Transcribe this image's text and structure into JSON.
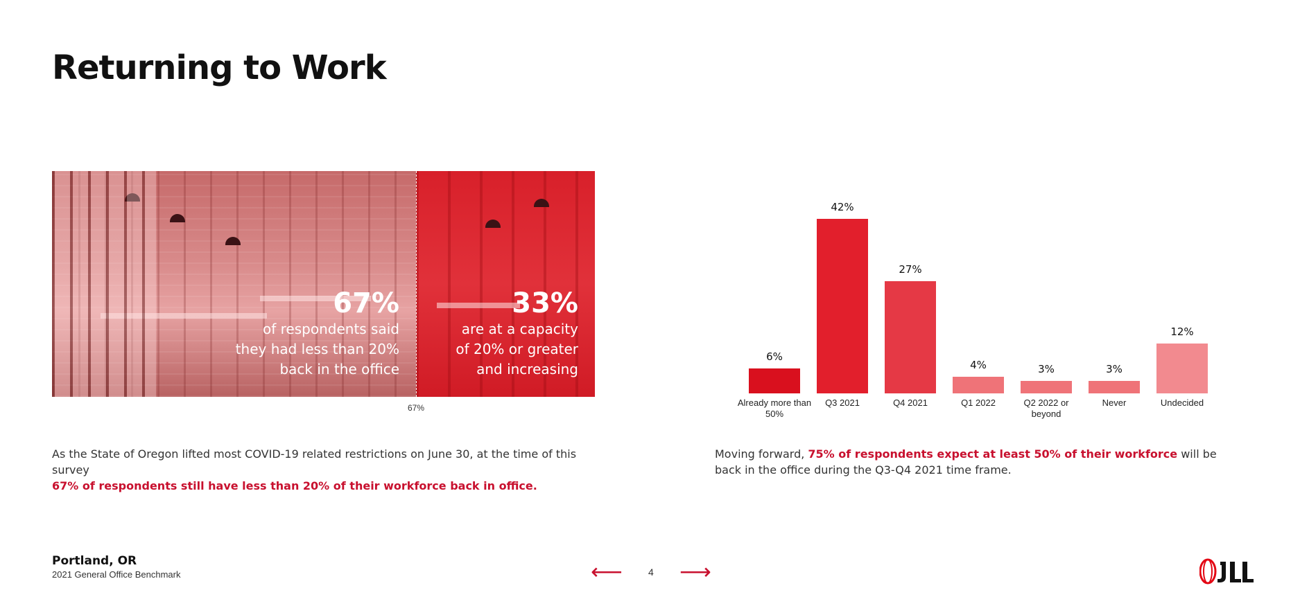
{
  "page": {
    "title": "Returning to Work"
  },
  "photo_panel": {
    "left_stat": {
      "value": "67%",
      "text": "of respondents said\nthey had less than 20%\nback in the office"
    },
    "right_stat": {
      "value": "33%",
      "text": "are at a capacity\nof  20% or greater\nand increasing"
    },
    "divider_label": "67%",
    "split_fraction": 0.67
  },
  "captions": {
    "left_plain": "As the State of Oregon lifted most COVID-19 related restrictions on June 30, at the time of this survey ",
    "left_highlight": "67% of respondents still have less than 20% of their workforce back in office.",
    "right_plain_1": "Moving forward, ",
    "right_highlight": "75% of respondents expect at least 50% of their workforce",
    "right_plain_2": " will be back in the office during the Q3-Q4 2021 time frame."
  },
  "chart_data": {
    "type": "bar",
    "categories": [
      "Already more than 50%",
      "Q3 2021",
      "Q4 2021",
      "Q1 2022",
      "Q2 2022 or beyond",
      "Never",
      "Undecided"
    ],
    "values": [
      6,
      42,
      27,
      4,
      3,
      3,
      12
    ],
    "data_labels": [
      "6%",
      "42%",
      "27%",
      "4%",
      "3%",
      "3%",
      "12%"
    ],
    "colors": [
      "#d9101e",
      "#e21f2c",
      "#e53945",
      "#ef7378",
      "#ef7378",
      "#ef7378",
      "#f28a8f"
    ],
    "title": "",
    "xlabel": "",
    "ylabel": "",
    "ylim": [
      0,
      42
    ]
  },
  "footer": {
    "city": "Portland, OR",
    "subtitle": "2021 General Office Benchmark",
    "page_number": "4",
    "prev_icon": "arrow-left-icon",
    "next_icon": "arrow-right-icon",
    "brand": "JLL",
    "brand_color": "#e30613"
  }
}
